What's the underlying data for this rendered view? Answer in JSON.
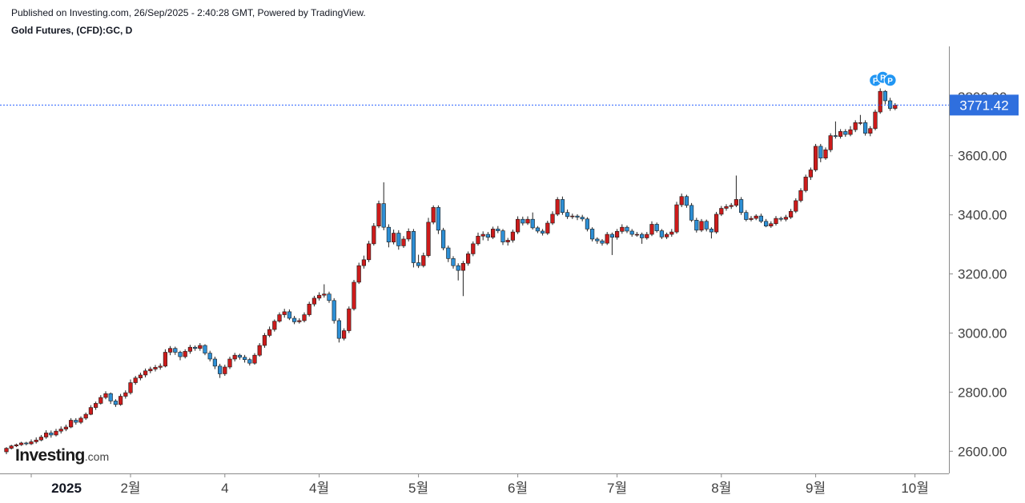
{
  "header": {
    "published": "Published on Investing.com, 26/Sep/2025 - 2:40:28 GMT, Powered by TradingView.",
    "symbol": "Gold Futures, (CFD):GC, D"
  },
  "logo": {
    "main": "Investing",
    "suffix": ".com"
  },
  "colors": {
    "up": "#cc1b1b",
    "down": "#2d8fd5",
    "wick": "#222222",
    "price_line": "#2962ff",
    "price_label_bg": "#2f6fde",
    "marker": "#2196f3"
  },
  "chart_data": {
    "type": "candlestick",
    "title": "Gold Futures, (CFD):GC, D",
    "last_price": 3771.42,
    "last_price_label": "3771.42",
    "ylim": [
      2525,
      3970
    ],
    "y_ticks": [
      {
        "value": 2600,
        "label": "2600.00"
      },
      {
        "value": 2800,
        "label": "2800.00"
      },
      {
        "value": 3000,
        "label": "3000.00"
      },
      {
        "value": 3200,
        "label": "3200.00"
      },
      {
        "value": 3400,
        "label": "3400.00"
      },
      {
        "value": 3600,
        "label": "3600.00"
      },
      {
        "value": 3800,
        "label": "3800.00"
      }
    ],
    "x_ticks": [
      {
        "index": 5,
        "label": "2025",
        "bold": true
      },
      {
        "index": 25,
        "label": "2월"
      },
      {
        "index": 44,
        "label": "4"
      },
      {
        "index": 63,
        "label": "4월"
      },
      {
        "index": 83,
        "label": "5월"
      },
      {
        "index": 103,
        "label": "6월"
      },
      {
        "index": 123,
        "label": "7월"
      },
      {
        "index": 144,
        "label": "8월"
      },
      {
        "index": 163,
        "label": "9월"
      },
      {
        "index": 183,
        "label": "10월"
      }
    ],
    "markers": [
      {
        "index": 176,
        "label": "P"
      },
      {
        "index": 177,
        "label": "P"
      },
      {
        "index": 178,
        "label": "P"
      }
    ],
    "close": [
      2610,
      2618,
      2622,
      2628,
      2625,
      2632,
      2638,
      2648,
      2662,
      2655,
      2668,
      2675,
      2682,
      2705,
      2698,
      2712,
      2725,
      2748,
      2762,
      2782,
      2795,
      2770,
      2758,
      2786,
      2798,
      2832,
      2848,
      2858,
      2872,
      2878,
      2884,
      2888,
      2935,
      2948,
      2935,
      2920,
      2938,
      2952,
      2948,
      2958,
      2932,
      2912,
      2888,
      2862,
      2885,
      2912,
      2925,
      2918,
      2910,
      2898,
      2925,
      2958,
      2992,
      3012,
      3040,
      3062,
      3072,
      3050,
      3038,
      3042,
      3062,
      3098,
      3118,
      3128,
      3132,
      3110,
      3042,
      2982,
      3008,
      3082,
      3172,
      3228,
      3248,
      3302,
      3362,
      3438,
      3358,
      3308,
      3338,
      3295,
      3318,
      3344,
      3238,
      3228,
      3262,
      3375,
      3425,
      3348,
      3288,
      3252,
      3228,
      3212,
      3236,
      3268,
      3302,
      3328,
      3334,
      3324,
      3352,
      3346,
      3308,
      3314,
      3342,
      3385,
      3372,
      3385,
      3356,
      3345,
      3338,
      3372,
      3402,
      3452,
      3408,
      3394,
      3396,
      3392,
      3386,
      3352,
      3318,
      3312,
      3304,
      3334,
      3324,
      3344,
      3358,
      3345,
      3334,
      3334,
      3322,
      3334,
      3368,
      3346,
      3325,
      3334,
      3342,
      3434,
      3462,
      3432,
      3382,
      3348,
      3378,
      3352,
      3342,
      3402,
      3422,
      3428,
      3432,
      3452,
      3408,
      3384,
      3388,
      3396,
      3378,
      3362,
      3370,
      3388,
      3385,
      3392,
      3412,
      3448,
      3482,
      3528,
      3552,
      3632,
      3592,
      3620,
      3668,
      3665,
      3682,
      3672,
      3688,
      3712,
      3712,
      3676,
      3692,
      3748,
      3818,
      3786,
      3760,
      3771
    ],
    "candles": [
      [
        2598,
        2614,
        2590,
        2610
      ],
      [
        2610,
        2622,
        2606,
        2618
      ],
      [
        2618,
        2626,
        2614,
        2622
      ],
      [
        2622,
        2632,
        2618,
        2628
      ],
      [
        2628,
        2632,
        2620,
        2625
      ],
      [
        2625,
        2640,
        2621,
        2632
      ],
      [
        2632,
        2647,
        2626,
        2638
      ],
      [
        2638,
        2655,
        2634,
        2648
      ],
      [
        2648,
        2671,
        2642,
        2662
      ],
      [
        2662,
        2670,
        2646,
        2655
      ],
      [
        2655,
        2676,
        2650,
        2668
      ],
      [
        2668,
        2684,
        2660,
        2675
      ],
      [
        2675,
        2690,
        2668,
        2682
      ],
      [
        2682,
        2712,
        2678,
        2705
      ],
      [
        2705,
        2712,
        2690,
        2698
      ],
      [
        2698,
        2718,
        2692,
        2712
      ],
      [
        2712,
        2731,
        2706,
        2725
      ],
      [
        2725,
        2756,
        2722,
        2748
      ],
      [
        2748,
        2768,
        2740,
        2762
      ],
      [
        2762,
        2790,
        2758,
        2782
      ],
      [
        2782,
        2803,
        2776,
        2795
      ],
      [
        2795,
        2799,
        2760,
        2770
      ],
      [
        2770,
        2776,
        2750,
        2758
      ],
      [
        2758,
        2794,
        2754,
        2786
      ],
      [
        2786,
        2806,
        2778,
        2798
      ],
      [
        2798,
        2843,
        2792,
        2832
      ],
      [
        2832,
        2855,
        2825,
        2848
      ],
      [
        2848,
        2866,
        2840,
        2858
      ],
      [
        2858,
        2880,
        2850,
        2872
      ],
      [
        2872,
        2886,
        2864,
        2878
      ],
      [
        2878,
        2892,
        2870,
        2884
      ],
      [
        2884,
        2897,
        2876,
        2888
      ],
      [
        2888,
        2945,
        2884,
        2935
      ],
      [
        2935,
        2956,
        2925,
        2948
      ],
      [
        2948,
        2954,
        2926,
        2935
      ],
      [
        2935,
        2940,
        2908,
        2920
      ],
      [
        2920,
        2945,
        2914,
        2938
      ],
      [
        2938,
        2960,
        2930,
        2952
      ],
      [
        2952,
        2958,
        2940,
        2948
      ],
      [
        2948,
        2966,
        2940,
        2958
      ],
      [
        2958,
        2962,
        2925,
        2932
      ],
      [
        2932,
        2940,
        2904,
        2912
      ],
      [
        2912,
        2920,
        2878,
        2888
      ],
      [
        2888,
        2896,
        2848,
        2862
      ],
      [
        2862,
        2893,
        2855,
        2885
      ],
      [
        2885,
        2920,
        2878,
        2912
      ],
      [
        2912,
        2933,
        2904,
        2925
      ],
      [
        2925,
        2930,
        2910,
        2918
      ],
      [
        2918,
        2926,
        2900,
        2910
      ],
      [
        2910,
        2916,
        2890,
        2898
      ],
      [
        2898,
        2932,
        2893,
        2925
      ],
      [
        2925,
        2966,
        2920,
        2958
      ],
      [
        2958,
        3000,
        2950,
        2992
      ],
      [
        2992,
        3022,
        2986,
        3012
      ],
      [
        3012,
        3046,
        3005,
        3040
      ],
      [
        3040,
        3070,
        3035,
        3062
      ],
      [
        3062,
        3082,
        3052,
        3072
      ],
      [
        3072,
        3080,
        3044,
        3050
      ],
      [
        3050,
        3058,
        3030,
        3038
      ],
      [
        3038,
        3050,
        3032,
        3042
      ],
      [
        3042,
        3070,
        3036,
        3062
      ],
      [
        3062,
        3106,
        3056,
        3098
      ],
      [
        3098,
        3126,
        3090,
        3118
      ],
      [
        3118,
        3138,
        3110,
        3128
      ],
      [
        3128,
        3165,
        3120,
        3132
      ],
      [
        3132,
        3140,
        3102,
        3110
      ],
      [
        3110,
        3118,
        3032,
        3042
      ],
      [
        3042,
        3050,
        2968,
        2982
      ],
      [
        2982,
        3016,
        2975,
        3008
      ],
      [
        3008,
        3090,
        3000,
        3082
      ],
      [
        3082,
        3180,
        3076,
        3172
      ],
      [
        3172,
        3238,
        3166,
        3228
      ],
      [
        3228,
        3262,
        3218,
        3248
      ],
      [
        3248,
        3312,
        3240,
        3302
      ],
      [
        3302,
        3372,
        3296,
        3362
      ],
      [
        3362,
        3448,
        3355,
        3438
      ],
      [
        3438,
        3510,
        3348,
        3358
      ],
      [
        3358,
        3368,
        3290,
        3308
      ],
      [
        3308,
        3350,
        3300,
        3338
      ],
      [
        3338,
        3348,
        3282,
        3295
      ],
      [
        3295,
        3328,
        3288,
        3318
      ],
      [
        3318,
        3354,
        3310,
        3344
      ],
      [
        3344,
        3352,
        3222,
        3238
      ],
      [
        3238,
        3265,
        3220,
        3228
      ],
      [
        3228,
        3272,
        3222,
        3262
      ],
      [
        3262,
        3390,
        3256,
        3375
      ],
      [
        3375,
        3432,
        3368,
        3425
      ],
      [
        3425,
        3432,
        3335,
        3348
      ],
      [
        3348,
        3356,
        3280,
        3288
      ],
      [
        3288,
        3296,
        3240,
        3252
      ],
      [
        3252,
        3260,
        3218,
        3228
      ],
      [
        3228,
        3236,
        3178,
        3212
      ],
      [
        3212,
        3244,
        3125,
        3236
      ],
      [
        3236,
        3276,
        3228,
        3268
      ],
      [
        3268,
        3310,
        3260,
        3302
      ],
      [
        3302,
        3340,
        3296,
        3328
      ],
      [
        3328,
        3344,
        3314,
        3334
      ],
      [
        3334,
        3342,
        3312,
        3324
      ],
      [
        3324,
        3360,
        3318,
        3352
      ],
      [
        3352,
        3362,
        3338,
        3346
      ],
      [
        3346,
        3352,
        3298,
        3308
      ],
      [
        3308,
        3322,
        3296,
        3314
      ],
      [
        3314,
        3350,
        3306,
        3342
      ],
      [
        3342,
        3395,
        3335,
        3385
      ],
      [
        3385,
        3394,
        3364,
        3372
      ],
      [
        3372,
        3395,
        3366,
        3385
      ],
      [
        3385,
        3408,
        3350,
        3356
      ],
      [
        3356,
        3362,
        3338,
        3345
      ],
      [
        3345,
        3352,
        3330,
        3338
      ],
      [
        3338,
        3380,
        3332,
        3372
      ],
      [
        3372,
        3412,
        3366,
        3402
      ],
      [
        3402,
        3460,
        3396,
        3452
      ],
      [
        3452,
        3462,
        3400,
        3408
      ],
      [
        3408,
        3418,
        3386,
        3394
      ],
      [
        3394,
        3404,
        3386,
        3396
      ],
      [
        3396,
        3402,
        3382,
        3392
      ],
      [
        3392,
        3400,
        3378,
        3386
      ],
      [
        3386,
        3392,
        3344,
        3352
      ],
      [
        3352,
        3358,
        3310,
        3318
      ],
      [
        3318,
        3324,
        3302,
        3312
      ],
      [
        3312,
        3318,
        3296,
        3304
      ],
      [
        3304,
        3342,
        3298,
        3334
      ],
      [
        3334,
        3340,
        3264,
        3324
      ],
      [
        3324,
        3352,
        3316,
        3344
      ],
      [
        3344,
        3368,
        3336,
        3358
      ],
      [
        3358,
        3364,
        3338,
        3345
      ],
      [
        3345,
        3352,
        3326,
        3334
      ],
      [
        3334,
        3342,
        3326,
        3334
      ],
      [
        3334,
        3340,
        3302,
        3322
      ],
      [
        3322,
        3342,
        3316,
        3334
      ],
      [
        3334,
        3378,
        3328,
        3368
      ],
      [
        3368,
        3374,
        3340,
        3346
      ],
      [
        3346,
        3352,
        3318,
        3325
      ],
      [
        3325,
        3340,
        3318,
        3334
      ],
      [
        3334,
        3352,
        3326,
        3342
      ],
      [
        3342,
        3444,
        3336,
        3434
      ],
      [
        3434,
        3472,
        3426,
        3462
      ],
      [
        3462,
        3468,
        3424,
        3432
      ],
      [
        3432,
        3440,
        3376,
        3382
      ],
      [
        3382,
        3390,
        3340,
        3348
      ],
      [
        3348,
        3386,
        3342,
        3378
      ],
      [
        3378,
        3384,
        3344,
        3352
      ],
      [
        3352,
        3358,
        3320,
        3342
      ],
      [
        3342,
        3410,
        3336,
        3402
      ],
      [
        3402,
        3430,
        3396,
        3422
      ],
      [
        3422,
        3436,
        3414,
        3428
      ],
      [
        3428,
        3440,
        3420,
        3432
      ],
      [
        3432,
        3533,
        3426,
        3452
      ],
      [
        3452,
        3460,
        3400,
        3408
      ],
      [
        3408,
        3416,
        3378,
        3384
      ],
      [
        3384,
        3396,
        3378,
        3388
      ],
      [
        3388,
        3402,
        3382,
        3396
      ],
      [
        3396,
        3404,
        3372,
        3378
      ],
      [
        3378,
        3386,
        3358,
        3362
      ],
      [
        3362,
        3378,
        3356,
        3370
      ],
      [
        3370,
        3396,
        3364,
        3388
      ],
      [
        3388,
        3394,
        3378,
        3385
      ],
      [
        3385,
        3400,
        3378,
        3392
      ],
      [
        3392,
        3420,
        3386,
        3412
      ],
      [
        3412,
        3456,
        3406,
        3448
      ],
      [
        3448,
        3490,
        3442,
        3482
      ],
      [
        3482,
        3536,
        3476,
        3528
      ],
      [
        3528,
        3560,
        3518,
        3552
      ],
      [
        3552,
        3640,
        3546,
        3632
      ],
      [
        3632,
        3640,
        3578,
        3592
      ],
      [
        3592,
        3628,
        3586,
        3620
      ],
      [
        3620,
        3676,
        3612,
        3668
      ],
      [
        3668,
        3716,
        3658,
        3665
      ],
      [
        3665,
        3690,
        3658,
        3682
      ],
      [
        3682,
        3690,
        3664,
        3672
      ],
      [
        3672,
        3700,
        3666,
        3688
      ],
      [
        3688,
        3720,
        3680,
        3712
      ],
      [
        3712,
        3738,
        3704,
        3712
      ],
      [
        3712,
        3720,
        3668,
        3676
      ],
      [
        3676,
        3700,
        3666,
        3692
      ],
      [
        3692,
        3756,
        3686,
        3748
      ],
      [
        3748,
        3828,
        3742,
        3818
      ],
      [
        3818,
        3822,
        3774,
        3786
      ],
      [
        3786,
        3796,
        3752,
        3760
      ],
      [
        3760,
        3778,
        3754,
        3771
      ]
    ]
  }
}
